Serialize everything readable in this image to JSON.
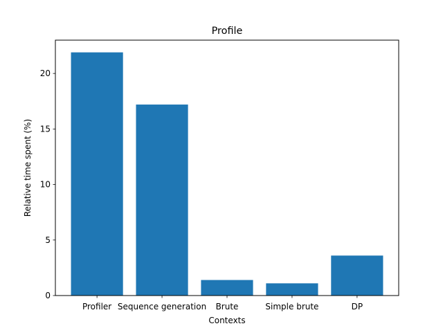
{
  "chart_data": {
    "type": "bar",
    "title": "Profile",
    "xlabel": "Contexts",
    "ylabel": "Relative time spent (%)",
    "categories": [
      "Profiler",
      "Sequence generation",
      "Brute",
      "Simple brute",
      "DP"
    ],
    "values": [
      21.9,
      17.2,
      1.4,
      1.1,
      3.6
    ],
    "ylim": [
      0,
      23
    ],
    "yticks": [
      0,
      5,
      10,
      15,
      20
    ],
    "grid": false,
    "bar_color": "#1f77b4"
  }
}
